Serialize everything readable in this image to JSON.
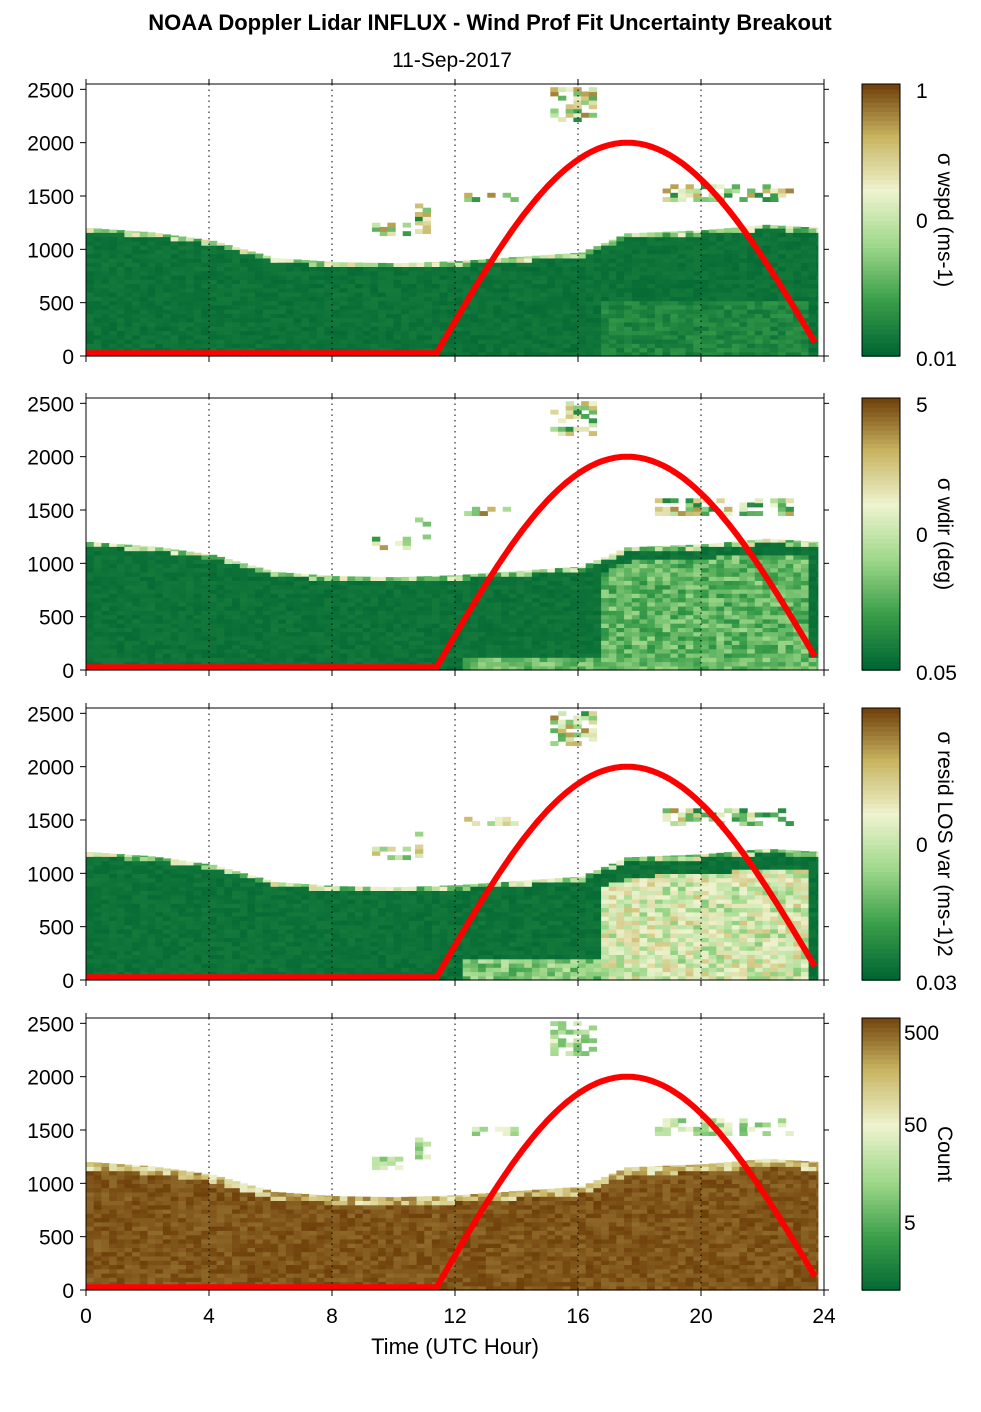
{
  "chart_data": {
    "title": "NOAA Doppler Lidar INFLUX - Wind Prof Fit Uncertainty Breakout",
    "subtitle": "11-Sep-2017",
    "xlabel": "Time (UTC Hour)",
    "xlim": [
      0,
      24
    ],
    "xticks": [
      "0",
      "4",
      "8",
      "12",
      "16",
      "20",
      "24"
    ],
    "grid": "dotted vertical lines at 4-hour intervals",
    "colors": {
      "dark_green": "#006633",
      "green": "#3a9e4a",
      "light_green": "#9fd88a",
      "pale": "#eef3cf",
      "tan": "#c8b461",
      "brown": "#6b3a06",
      "curve_red": "#ff0000"
    },
    "curve": {
      "color": "#ff0000",
      "note_points": [
        [
          0,
          25
        ],
        [
          11.4,
          25
        ],
        [
          13,
          1120
        ],
        [
          15,
          1760
        ],
        [
          17.6,
          2000
        ],
        [
          20,
          1800
        ],
        [
          22,
          1150
        ],
        [
          23.8,
          80
        ]
      ]
    },
    "panels": [
      {
        "type": "heatmap",
        "ylim": [
          0,
          2550
        ],
        "yticks": [
          "0",
          "500",
          "1000",
          "1500",
          "2000",
          "2500"
        ],
        "colorbar": {
          "label": "σ wspd (ms-1)",
          "ticks": [
            "1",
            "0",
            "0.01"
          ]
        },
        "background": "#006633"
      },
      {
        "type": "heatmap",
        "ylim": [
          0,
          2550
        ],
        "yticks": [
          "0",
          "500",
          "1000",
          "1500",
          "2000",
          "2500"
        ],
        "colorbar": {
          "label": "σ wdir (deg)",
          "ticks": [
            "5",
            "0",
            "0.05"
          ]
        },
        "background": "#006633"
      },
      {
        "type": "heatmap",
        "ylim": [
          0,
          2550
        ],
        "yticks": [
          "0",
          "500",
          "1000",
          "1500",
          "2000",
          "2500"
        ],
        "colorbar": {
          "label": "σ resid LOS var (ms-1)2",
          "ticks": [
            "0",
            "0.03"
          ]
        },
        "background": "#006633"
      },
      {
        "type": "heatmap",
        "ylim": [
          0,
          2550
        ],
        "yticks": [
          "0",
          "500",
          "1000",
          "1500",
          "2000",
          "2500"
        ],
        "colorbar": {
          "label": "Count",
          "ticks": [
            "500",
            "50",
            "5"
          ]
        },
        "background": "#6b3a06"
      }
    ],
    "cloud_top_profile": [
      [
        0,
        1200
      ],
      [
        2,
        1160
      ],
      [
        4,
        1080
      ],
      [
        6,
        920
      ],
      [
        8,
        880
      ],
      [
        10,
        870
      ],
      [
        12,
        890
      ],
      [
        14,
        930
      ],
      [
        16,
        970
      ],
      [
        17.5,
        1150
      ],
      [
        20,
        1180
      ],
      [
        22,
        1230
      ],
      [
        23.8,
        1200
      ]
    ]
  }
}
